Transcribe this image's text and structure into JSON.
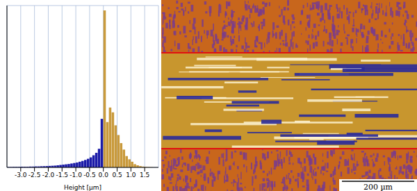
{
  "chart_data": {
    "type": "histogram",
    "x_label": "Height [µm]",
    "bins": [
      -3.5,
      -3.4,
      -3.3,
      -3.2,
      -3.1,
      -3.0,
      -2.9,
      -2.8,
      -2.7,
      -2.6,
      -2.5,
      -2.4,
      -2.3,
      -2.2,
      -2.1,
      -2.0,
      -1.9,
      -1.8,
      -1.7,
      -1.6,
      -1.5,
      -1.4,
      -1.3,
      -1.2,
      -1.1,
      -1.0,
      -0.9,
      -0.8,
      -0.7,
      -0.6,
      -0.5,
      -0.4,
      -0.3,
      -0.2,
      -0.1,
      0.0,
      0.1,
      0.2,
      0.3,
      0.4,
      0.5,
      0.6,
      0.7,
      0.8,
      0.9,
      1.0,
      1.1,
      1.2,
      1.3,
      1.4,
      1.5,
      1.6,
      1.7,
      1.8,
      1.9,
      2.0
    ],
    "counts": [
      0.2,
      0.2,
      0.3,
      0.3,
      0.3,
      0.4,
      0.4,
      0.4,
      0.5,
      0.5,
      0.6,
      0.6,
      0.7,
      0.7,
      0.8,
      0.9,
      1.0,
      1.1,
      1.3,
      1.5,
      1.7,
      1.9,
      2.1,
      2.4,
      2.7,
      3.0,
      3.5,
      4.0,
      4.6,
      5.3,
      6.2,
      7.5,
      9.0,
      11.5,
      30,
      97,
      28,
      37,
      34,
      26,
      20,
      15,
      11,
      7,
      5,
      3.5,
      2,
      1.3,
      0.8,
      0.5,
      0.3,
      0.2,
      0.1,
      0,
      0
    ],
    "colors": [
      "#1c1ca8",
      "#1c1ca8",
      "#1c1ca8",
      "#1c1ca8",
      "#1c1ca8",
      "#1c1ca8",
      "#1c1ca8",
      "#1c1ca8",
      "#1c1ca8",
      "#1c1ca8",
      "#1c1ca8",
      "#1c1ca8",
      "#1c1ca8",
      "#1c1ca8",
      "#1c1ca8",
      "#1c1ca8",
      "#1c1ca8",
      "#1c1ca8",
      "#1c1ca8",
      "#1c1ca8",
      "#1c1ca8",
      "#1c1ca8",
      "#1c1ca8",
      "#1c1ca8",
      "#1c1ca8",
      "#1c1ca8",
      "#1c1ca8",
      "#1c1ca8",
      "#1c1ca8",
      "#1c1ca8",
      "#1c1ca8",
      "#1c1ca8",
      "#1c1ca8",
      "#1c1ca8",
      "#1c1ca8",
      "#c99a3c",
      "#c99a3c",
      "#c99a3c",
      "#c99a3c",
      "#c99a3c",
      "#c99a3c",
      "#c99a3c",
      "#c99a3c",
      "#c99a3c",
      "#c99a3c",
      "#c99a3c",
      "#c99a3c",
      "#c99a3c",
      "#c99a3c",
      "#c99a3c",
      "#c99a3c",
      "#c99a3c",
      "#c99a3c",
      "#c99a3c",
      "#c99a3c"
    ],
    "xlim": [
      -3.5,
      2.0
    ],
    "xticks": [
      {
        "value": -3.0,
        "label": "-3.0"
      },
      {
        "value": -2.5,
        "label": "-2.5"
      },
      {
        "value": -2.0,
        "label": "-2.0"
      },
      {
        "value": -1.5,
        "label": "-1.5"
      },
      {
        "value": -1.0,
        "label": "-1.0"
      },
      {
        "value": -0.5,
        "label": "-0.5"
      },
      {
        "value": 0.0,
        "label": "0.0"
      },
      {
        "value": 0.5,
        "label": "0.5"
      },
      {
        "value": 1.0,
        "label": "1.0"
      },
      {
        "value": 1.5,
        "label": "1.5"
      }
    ],
    "ylim": [
      0,
      100
    ],
    "yticks": [
      0,
      12.5,
      25,
      37.5,
      50,
      62.5,
      75,
      87.5,
      100
    ],
    "grid": true,
    "tick_labels": "x"
  },
  "image": {
    "scale_bar": "200 µm"
  }
}
